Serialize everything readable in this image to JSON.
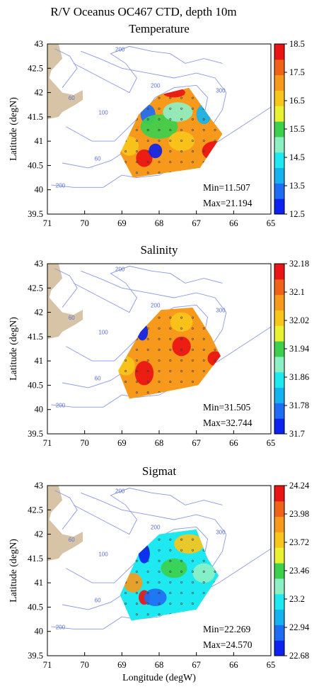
{
  "title": "R/V Oceanus OC467 CTD, depth 10m",
  "chart_data": [
    {
      "type": "heatmap",
      "title": "Temperature",
      "xlabel": "",
      "ylabel": "Latitude (degN)",
      "xlim": [
        71,
        65
      ],
      "ylim": [
        39.5,
        43
      ],
      "xticks": [
        "71",
        "70",
        "69",
        "68",
        "67",
        "66",
        "65"
      ],
      "yticks": [
        "43",
        "42.5",
        "42",
        "41.5",
        "41",
        "40.5",
        "40",
        "39.5"
      ],
      "colorbar_ticks": [
        "18.5",
        "17.5",
        "16.5",
        "15.5",
        "14.5",
        "13.5",
        "12.5"
      ],
      "colorbar_range": [
        12.5,
        18.5
      ],
      "min_label": "Min=11.507",
      "max_label": "Max=21.194",
      "contour_labels": [
        "200",
        "60",
        "100",
        "200",
        "300",
        "60",
        "100",
        "200"
      ]
    },
    {
      "type": "heatmap",
      "title": "Salinity",
      "xlabel": "",
      "ylabel": "Latitude (degN)",
      "xlim": [
        71,
        65
      ],
      "ylim": [
        39.5,
        43
      ],
      "xticks": [
        "71",
        "70",
        "69",
        "68",
        "67",
        "66",
        "65"
      ],
      "yticks": [
        "43",
        "42.5",
        "42",
        "41.5",
        "41",
        "40.5",
        "40",
        "39.5"
      ],
      "colorbar_ticks": [
        "32.18",
        "32.1",
        "32.02",
        "31.94",
        "31.86",
        "31.78",
        "31.7"
      ],
      "colorbar_range": [
        31.7,
        32.18
      ],
      "min_label": "Min=31.505",
      "max_label": "Max=32.744",
      "contour_labels": [
        "200",
        "60",
        "100",
        "200",
        "300",
        "60",
        "100",
        "200"
      ]
    },
    {
      "type": "heatmap",
      "title": "Sigmat",
      "xlabel": "Longitude (degW)",
      "ylabel": "Latitude (degN)",
      "xlim": [
        71,
        65
      ],
      "ylim": [
        39.5,
        43
      ],
      "xticks": [
        "71",
        "70",
        "69",
        "68",
        "67",
        "66",
        "65"
      ],
      "yticks": [
        "43",
        "42.5",
        "42",
        "41.5",
        "41",
        "40.5",
        "40",
        "39.5"
      ],
      "colorbar_ticks": [
        "24.24",
        "23.98",
        "23.72",
        "23.46",
        "23.2",
        "22.94",
        "22.68"
      ],
      "colorbar_range": [
        22.68,
        24.24
      ],
      "min_label": "Min=22.269",
      "max_label": "Max=24.570",
      "contour_labels": [
        "200",
        "60",
        "100",
        "200",
        "300",
        "60",
        "100",
        "200"
      ]
    }
  ],
  "colors": {
    "colormap": [
      "#0b22f0",
      "#1f6cf4",
      "#14b3ef",
      "#1ee8f0",
      "#8df0c4",
      "#3cd04c",
      "#e8f232",
      "#f8c61a",
      "#f79a1c",
      "#f06218",
      "#ea1414"
    ],
    "land": "#d7c3a6",
    "contour": "#8a98e6",
    "station": "#3a3a3a"
  }
}
